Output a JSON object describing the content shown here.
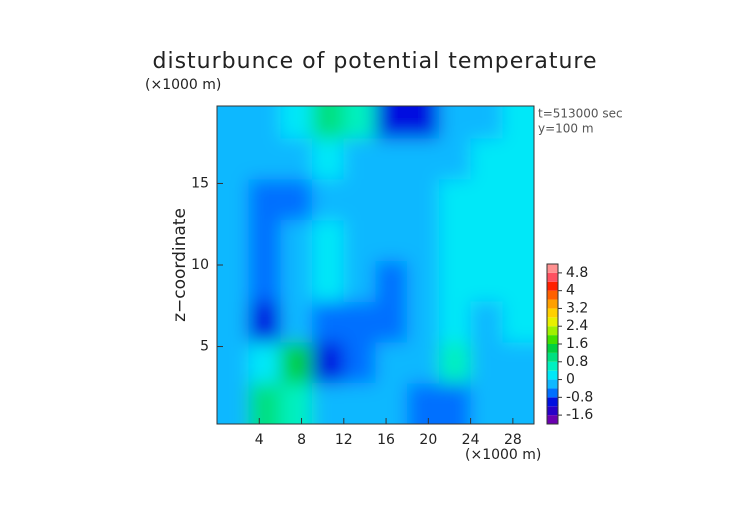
{
  "chart_data": {
    "type": "contour",
    "title": "disturbunce of potential temperature",
    "ylabel": "z−coordinate",
    "xunit": "(×1000 m)",
    "yunit": "(×1000 m)",
    "annotations": [
      "t=513000 sec",
      "y=100 m"
    ],
    "xlim": [
      0,
      30
    ],
    "ylim": [
      0.25,
      19.75
    ],
    "xticks": [
      4,
      8,
      12,
      16,
      20,
      24,
      28
    ],
    "yticks": [
      5,
      10,
      15
    ],
    "x": [
      1.5,
      4.5,
      7.5,
      10.5,
      13.5,
      16.5,
      19.5,
      22.5,
      25.5,
      28.5
    ],
    "z": [
      1.5,
      4,
      6.5,
      9,
      11.5,
      14,
      16.5,
      19
    ],
    "values": [
      [
        -0.2,
        1.0,
        0.6,
        -0.2,
        -0.2,
        -0.4,
        -0.8,
        -0.8,
        -0.4,
        -0.2
      ],
      [
        -0.2,
        0,
        1.2,
        -1.0,
        -0.6,
        -0.2,
        -0.4,
        0.4,
        -0.4,
        -0.2
      ],
      [
        -0.4,
        -1.0,
        -0.4,
        -0.6,
        -0.8,
        -0.8,
        -0.4,
        0.2,
        -0.2,
        0
      ],
      [
        -0.4,
        -0.6,
        -0.2,
        0,
        -0.2,
        -0.6,
        -0.2,
        0,
        0.2,
        0
      ],
      [
        -0.2,
        -0.6,
        -0.4,
        0,
        -0.2,
        -0.4,
        -0.2,
        0,
        0,
        0
      ],
      [
        -0.2,
        -0.6,
        -0.6,
        -0.2,
        -0.2,
        -0.4,
        -0.4,
        0,
        0.2,
        0
      ],
      [
        -0.2,
        -0.4,
        -0.4,
        0.2,
        -0.2,
        -0.2,
        -0.4,
        -0.2,
        0,
        0
      ],
      [
        -0.2,
        -0.4,
        0,
        0.8,
        0.4,
        -1.2,
        -1.0,
        -0.2,
        -0.4,
        0
      ]
    ],
    "levels": [
      -2.0,
      -1.6,
      -1.2,
      -0.8,
      -0.4,
      0,
      0.4,
      0.8,
      1.2,
      1.6,
      2.0,
      2.4,
      2.8,
      3.2,
      3.6,
      4.0,
      4.4,
      4.8,
      5.2
    ],
    "colors": [
      "#6a00b0",
      "#2800c8",
      "#0010e0",
      "#0070ff",
      "#10b8ff",
      "#00e8f8",
      "#00f0c0",
      "#00e080",
      "#00d040",
      "#40e000",
      "#a0f000",
      "#e8f000",
      "#ffd000",
      "#ffa000",
      "#ff6000",
      "#ff2000",
      "#ff5060",
      "#ff9090"
    ],
    "colorbar_ticks": [
      4.8,
      4,
      3.2,
      2.4,
      1.6,
      0.8,
      0,
      -0.8,
      -1.6
    ]
  }
}
